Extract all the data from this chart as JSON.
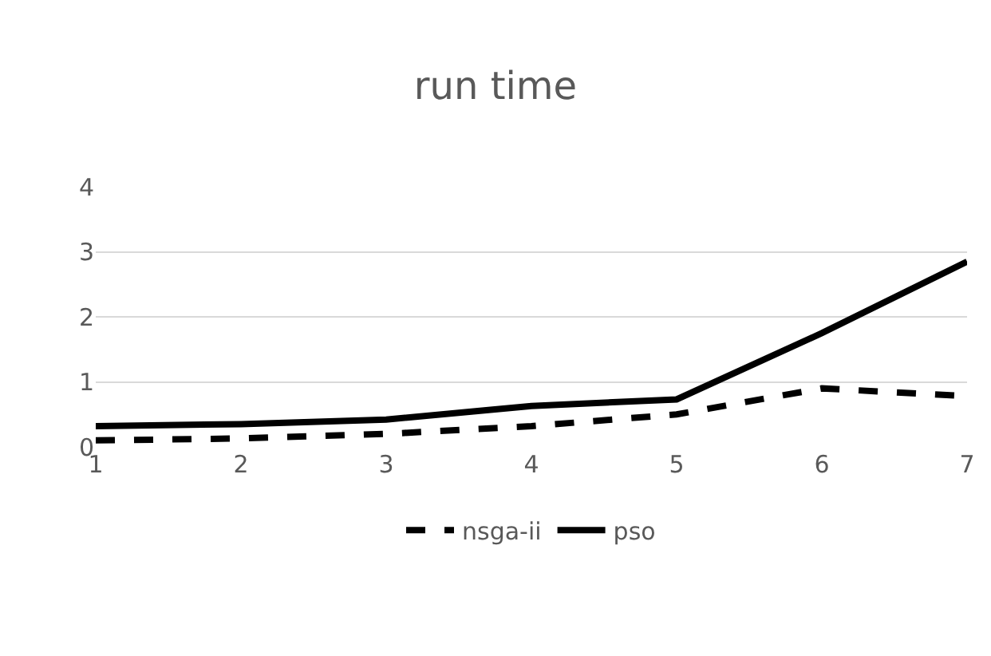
{
  "chart_data": {
    "type": "line",
    "title": "run time",
    "categories": [
      "1",
      "2",
      "3",
      "4",
      "5",
      "6",
      "7"
    ],
    "series": [
      {
        "name": "nsga-ii",
        "color": "#000000",
        "line_style": "dashed",
        "values": [
          0.1,
          0.13,
          0.2,
          0.32,
          0.5,
          0.9,
          0.78
        ]
      },
      {
        "name": "pso",
        "color": "#000000",
        "line_style": "solid",
        "values": [
          0.32,
          0.35,
          0.42,
          0.63,
          0.73,
          1.75,
          2.85
        ]
      }
    ],
    "ylim": [
      0,
      4
    ],
    "yticks": [
      0,
      1,
      2,
      3,
      4
    ],
    "grid": "y",
    "legend": "bottom",
    "marker": "none"
  }
}
